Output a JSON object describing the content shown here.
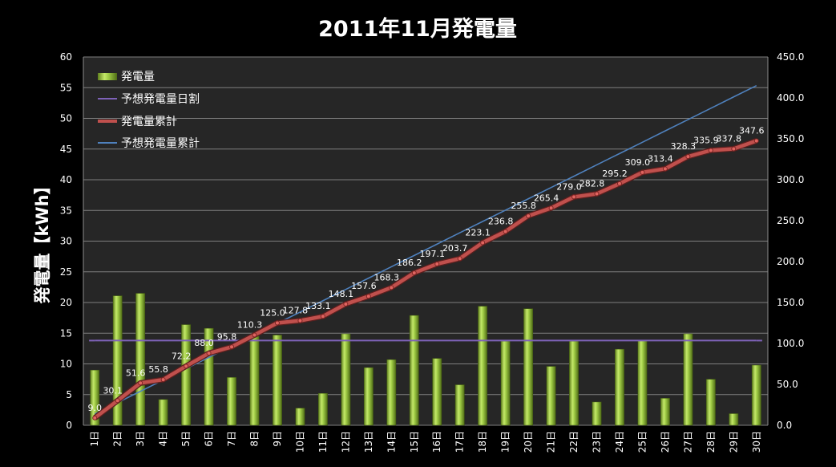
{
  "chart_data": {
    "type": "bar",
    "title": "2011年11月発電量",
    "ylabel": "発電量【kWh】",
    "ylim": [
      0,
      60
    ],
    "y2lim": [
      0,
      450
    ],
    "yticks": [
      "0",
      "5",
      "10",
      "15",
      "20",
      "25",
      "30",
      "35",
      "40",
      "45",
      "50",
      "55",
      "60"
    ],
    "y2ticks": [
      "0.0",
      "50.0",
      "100.0",
      "150.0",
      "200.0",
      "250.0",
      "300.0",
      "350.0",
      "400.0",
      "450.0"
    ],
    "categories": [
      "1日",
      "2日",
      "3日",
      "4日",
      "5日",
      "6日",
      "7日",
      "8日",
      "9日",
      "10日",
      "11日",
      "12日",
      "13日",
      "14日",
      "15日",
      "16日",
      "17日",
      "18日",
      "19日",
      "20日",
      "21日",
      "22日",
      "23日",
      "24日",
      "25日",
      "26日",
      "27日",
      "28日",
      "29日",
      "30日"
    ],
    "series": [
      {
        "name": "発電量",
        "type": "bar",
        "axis": "left",
        "color": "#8db43a",
        "values": [
          9.0,
          21.1,
          21.5,
          4.2,
          16.4,
          15.8,
          7.8,
          14.5,
          14.7,
          2.8,
          5.2,
          14.9,
          9.4,
          10.7,
          17.9,
          10.9,
          6.6,
          19.4,
          13.7,
          19.0,
          9.6,
          13.7,
          3.8,
          12.4,
          13.8,
          4.4,
          14.9,
          7.5,
          1.9,
          9.8
        ]
      },
      {
        "name": "予想発電量日割",
        "type": "line",
        "axis": "left",
        "color": "#7e62b8",
        "values": [
          13.8,
          13.8,
          13.8,
          13.8,
          13.8,
          13.8,
          13.8,
          13.8,
          13.8,
          13.8,
          13.8,
          13.8,
          13.8,
          13.8,
          13.8,
          13.8,
          13.8,
          13.8,
          13.8,
          13.8,
          13.8,
          13.8,
          13.8,
          13.8,
          13.8,
          13.8,
          13.8,
          13.8,
          13.8,
          13.8
        ]
      },
      {
        "name": "発電量累計",
        "type": "line",
        "axis": "right",
        "color": "#c0504d",
        "values": [
          9.0,
          30.1,
          51.6,
          55.8,
          72.2,
          88.0,
          95.8,
          110.3,
          125.0,
          127.8,
          133.1,
          148.1,
          157.6,
          168.3,
          186.2,
          197.1,
          203.7,
          223.1,
          236.8,
          255.8,
          265.4,
          279.0,
          282.8,
          295.2,
          309.0,
          313.4,
          328.3,
          335.9,
          337.8,
          347.6
        ],
        "labels": [
          "9.0",
          "30.1",
          "51.6",
          "55.8",
          "72.2",
          "88.0",
          "95.8",
          "110.3",
          "125.0",
          "127.8",
          "133.1",
          "148.1",
          "157.6",
          "168.3",
          "186.2",
          "197.1",
          "203.7",
          "223.1",
          "236.8",
          "255.8",
          "265.4",
          "279.0",
          "282.8",
          "295.2",
          "309.0",
          "313.4",
          "328.3",
          "335.9",
          "337.8",
          "347.6"
        ]
      },
      {
        "name": "予想発電量累計",
        "type": "line",
        "axis": "right",
        "color": "#4f81bd",
        "values": [
          13.8,
          27.7,
          41.5,
          55.3,
          69.2,
          83.0,
          96.8,
          110.7,
          124.5,
          138.3,
          152.2,
          166.0,
          179.8,
          193.7,
          207.5,
          221.3,
          235.2,
          249.0,
          262.8,
          276.7,
          290.5,
          304.3,
          318.2,
          332.0,
          345.8,
          359.7,
          373.5,
          387.3,
          401.2,
          415.0
        ]
      }
    ]
  }
}
